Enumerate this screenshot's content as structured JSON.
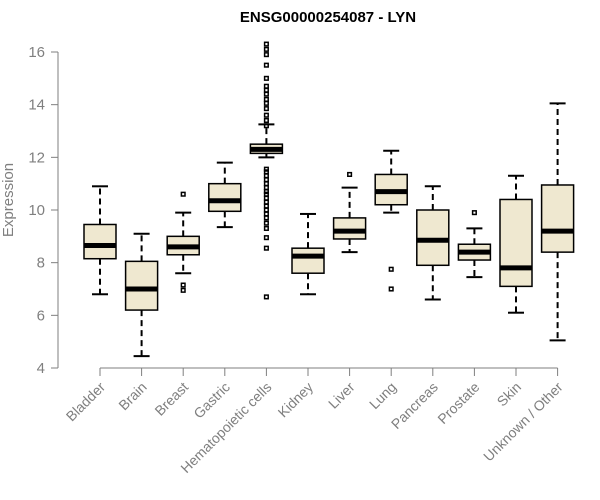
{
  "chart_data": {
    "type": "boxplot",
    "title": "ENSG00000254087 - LYN",
    "xlabel": "",
    "ylabel": "Expression",
    "ylim": [
      4,
      16.5
    ],
    "yticks": [
      4,
      6,
      8,
      10,
      12,
      14,
      16
    ],
    "box_fill": "#efe8d0",
    "categories": [
      "Bladder",
      "Brain",
      "Breast",
      "Gastric",
      "Hematopoietic cells",
      "Kidney",
      "Liver",
      "Lung",
      "Pancreas",
      "Prostate",
      "Skin",
      "Unknown / Other"
    ],
    "boxes": [
      {
        "name": "Bladder",
        "min": 6.8,
        "q1": 8.15,
        "median": 8.65,
        "q3": 9.45,
        "max": 10.9,
        "outliers": []
      },
      {
        "name": "Brain",
        "min": 4.45,
        "q1": 6.2,
        "median": 7.0,
        "q3": 8.05,
        "max": 9.1,
        "outliers": []
      },
      {
        "name": "Breast",
        "min": 7.6,
        "q1": 8.3,
        "median": 8.6,
        "q3": 9.0,
        "max": 9.9,
        "outliers": [
          10.6,
          7.15,
          6.95
        ]
      },
      {
        "name": "Gastric",
        "min": 9.35,
        "q1": 9.95,
        "median": 10.35,
        "q3": 11.0,
        "max": 11.8,
        "outliers": []
      },
      {
        "name": "Hematopoietic cells",
        "min": 12.0,
        "q1": 12.15,
        "median": 12.3,
        "q3": 12.5,
        "max": 13.25,
        "outliers": [
          16.3,
          16.1,
          15.9,
          15.5,
          15.0,
          14.7,
          14.55,
          14.4,
          14.2,
          14.05,
          13.85,
          13.6,
          13.4,
          13.2,
          11.55,
          11.45,
          11.3,
          11.15,
          11.0,
          10.85,
          10.7,
          10.6,
          10.45,
          10.3,
          10.15,
          10.0,
          9.85,
          9.7,
          9.5,
          9.3,
          8.95,
          8.55,
          6.7
        ]
      },
      {
        "name": "Kidney",
        "min": 6.8,
        "q1": 7.6,
        "median": 8.25,
        "q3": 8.55,
        "max": 9.85,
        "outliers": []
      },
      {
        "name": "Liver",
        "min": 8.4,
        "q1": 8.9,
        "median": 9.2,
        "q3": 9.7,
        "max": 10.85,
        "outliers": [
          11.35
        ]
      },
      {
        "name": "Lung",
        "min": 9.9,
        "q1": 10.2,
        "median": 10.7,
        "q3": 11.35,
        "max": 12.25,
        "outliers": [
          7.75,
          7.0
        ]
      },
      {
        "name": "Pancreas",
        "min": 6.6,
        "q1": 7.9,
        "median": 8.85,
        "q3": 10.0,
        "max": 10.9,
        "outliers": []
      },
      {
        "name": "Prostate",
        "min": 7.45,
        "q1": 8.1,
        "median": 8.4,
        "q3": 8.7,
        "max": 9.3,
        "outliers": [
          9.9
        ]
      },
      {
        "name": "Skin",
        "min": 6.1,
        "q1": 7.1,
        "median": 7.8,
        "q3": 10.4,
        "max": 11.3,
        "outliers": []
      },
      {
        "name": "Unknown / Other",
        "min": 5.05,
        "q1": 8.4,
        "median": 9.2,
        "q3": 10.95,
        "max": 14.05,
        "outliers": []
      }
    ]
  }
}
